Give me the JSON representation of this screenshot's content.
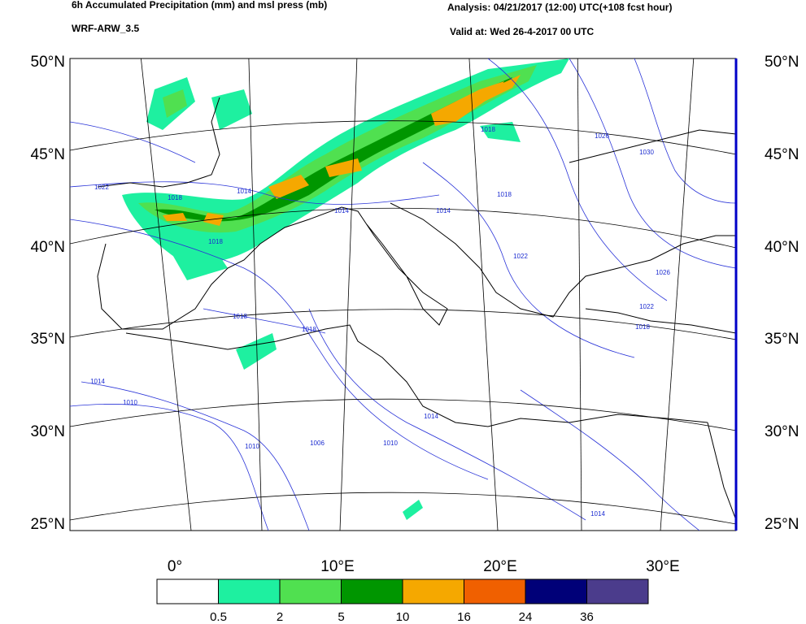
{
  "header": {
    "title": "6h Accumulated Precipitation (mm) and msl press (mb)",
    "model": "WRF-ARW_3.5",
    "analysis": "Analysis: 04/21/2017 (12:00) UTC(+108 fcst hour)",
    "valid": "Valid at: Wed 26-4-2017 00 UTC"
  },
  "map": {
    "lat_labels": [
      "50°N",
      "45°N",
      "40°N",
      "35°N",
      "30°N",
      "25°N"
    ],
    "lon_labels": [
      "0°",
      "10°E",
      "20°E",
      "30°E"
    ],
    "isobar_labels": [
      "1022",
      "1018",
      "1014",
      "1018",
      "1014",
      "1010",
      "1018",
      "1018",
      "1014",
      "1010",
      "1006",
      "1010",
      "1014",
      "1018",
      "1022",
      "1026",
      "1030",
      "1026",
      "1022",
      "1018",
      "1014",
      "1018",
      "1014"
    ]
  },
  "legend": {
    "colors": [
      "#ffffff",
      "#1ef0a0",
      "#50e050",
      "#009600",
      "#f5a800",
      "#f06000",
      "#000078",
      "#4b3c8c"
    ],
    "labels": [
      "0.5",
      "2",
      "5",
      "10",
      "16",
      "24",
      "36"
    ]
  }
}
